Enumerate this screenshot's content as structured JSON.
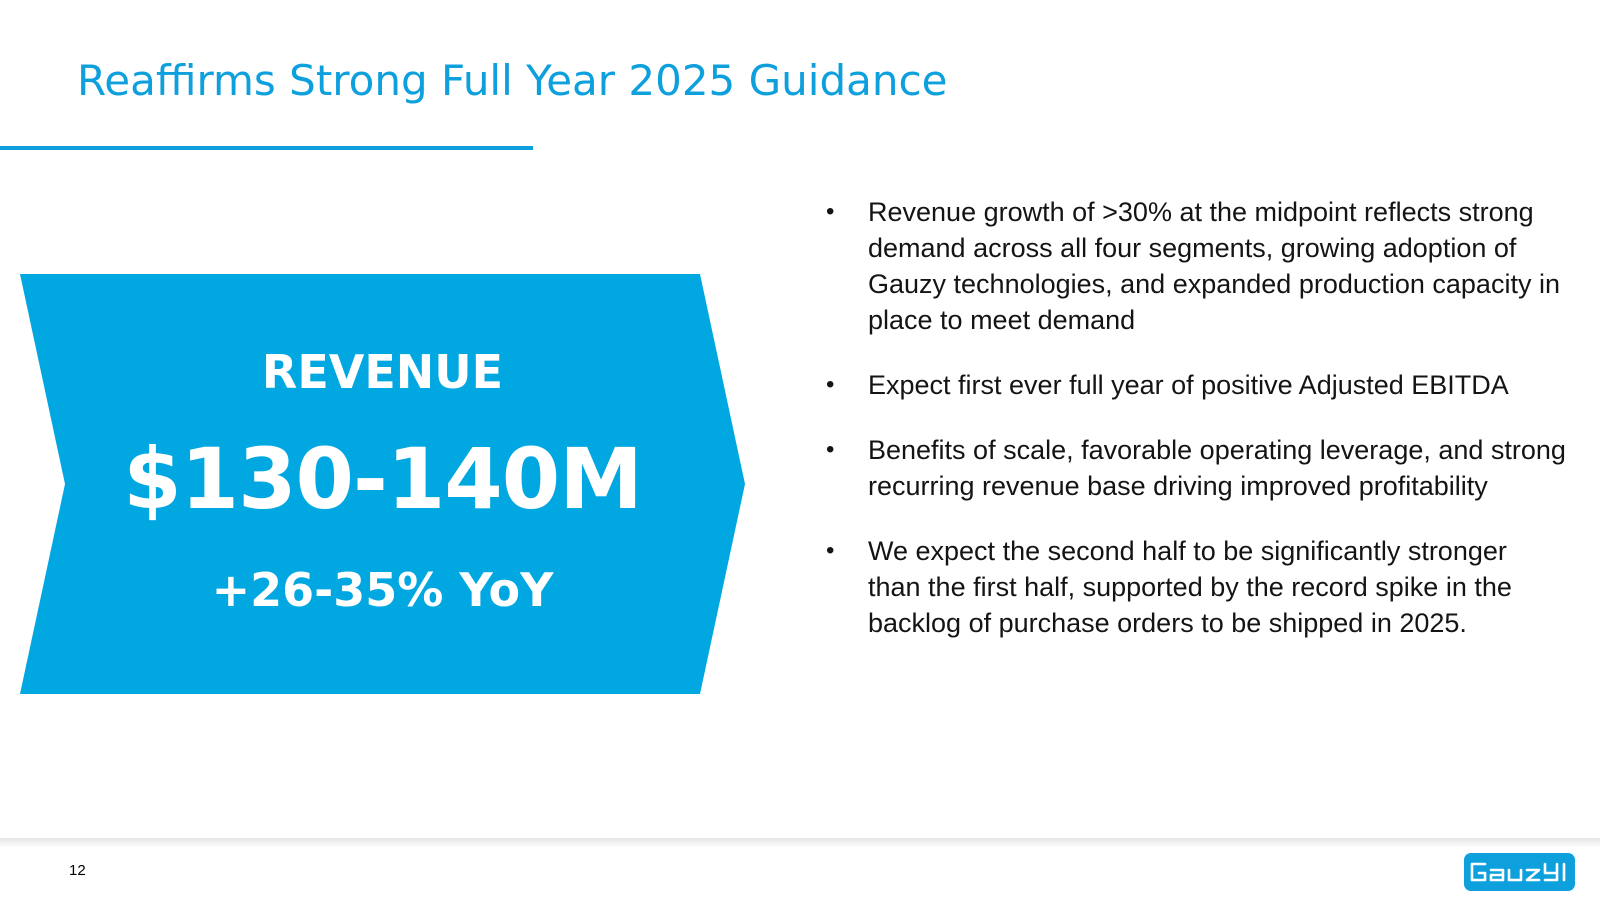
{
  "slide": {
    "title": "Reaffirms Strong Full Year 2025 Guidance",
    "page_number": "12",
    "accent_color": "#0ea0dd"
  },
  "guidance": {
    "label": "REVENUE",
    "value": "$130-140M",
    "growth": "+26-35% YoY"
  },
  "bullets": [
    {
      "mark": "•",
      "text": "Revenue growth of >30% at the midpoint reflects strong demand across all four segments, growing adoption of Gauzy technologies, and expanded production capacity in place to meet demand"
    },
    {
      "mark": "•",
      "text": "Expect first ever full year of positive Adjusted EBITDA"
    },
    {
      "mark": "•",
      "text": "Benefits of scale, favorable operating leverage, and strong recurring revenue base driving improved profitability"
    },
    {
      "mark": "•",
      "text": "We expect the second half to be significantly stronger than the first half, supported by the record spike in the backlog of purchase orders to be shipped in 2025."
    }
  ],
  "logo": {
    "icon": "gauzy-logo-icon",
    "text": "Gauzy"
  }
}
